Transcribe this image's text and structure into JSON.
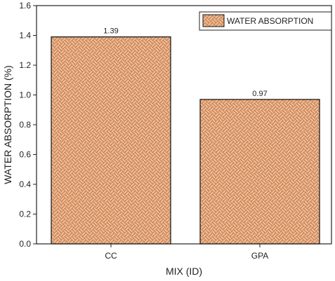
{
  "chart_data": {
    "type": "bar",
    "title": "",
    "xlabel": "MIX (ID)",
    "ylabel": "WATER ABSORPTION (%)",
    "ylim": [
      0,
      1.6
    ],
    "yticks": [
      "0.0",
      "0.2",
      "0.4",
      "0.6",
      "0.8",
      "1.0",
      "1.2",
      "1.4",
      "1.6"
    ],
    "categories": [
      "CC",
      "GPA"
    ],
    "series": [
      {
        "name": "WATER ABSORPTION",
        "values": [
          1.39,
          0.97
        ],
        "labels": [
          "1.39",
          "0.97"
        ]
      }
    ],
    "legend_position": "top-right",
    "grid": false,
    "colors": {
      "bar_fill": "#f4c09a",
      "bar_pattern": "#c8865a",
      "bar_edge": "#111111"
    }
  }
}
